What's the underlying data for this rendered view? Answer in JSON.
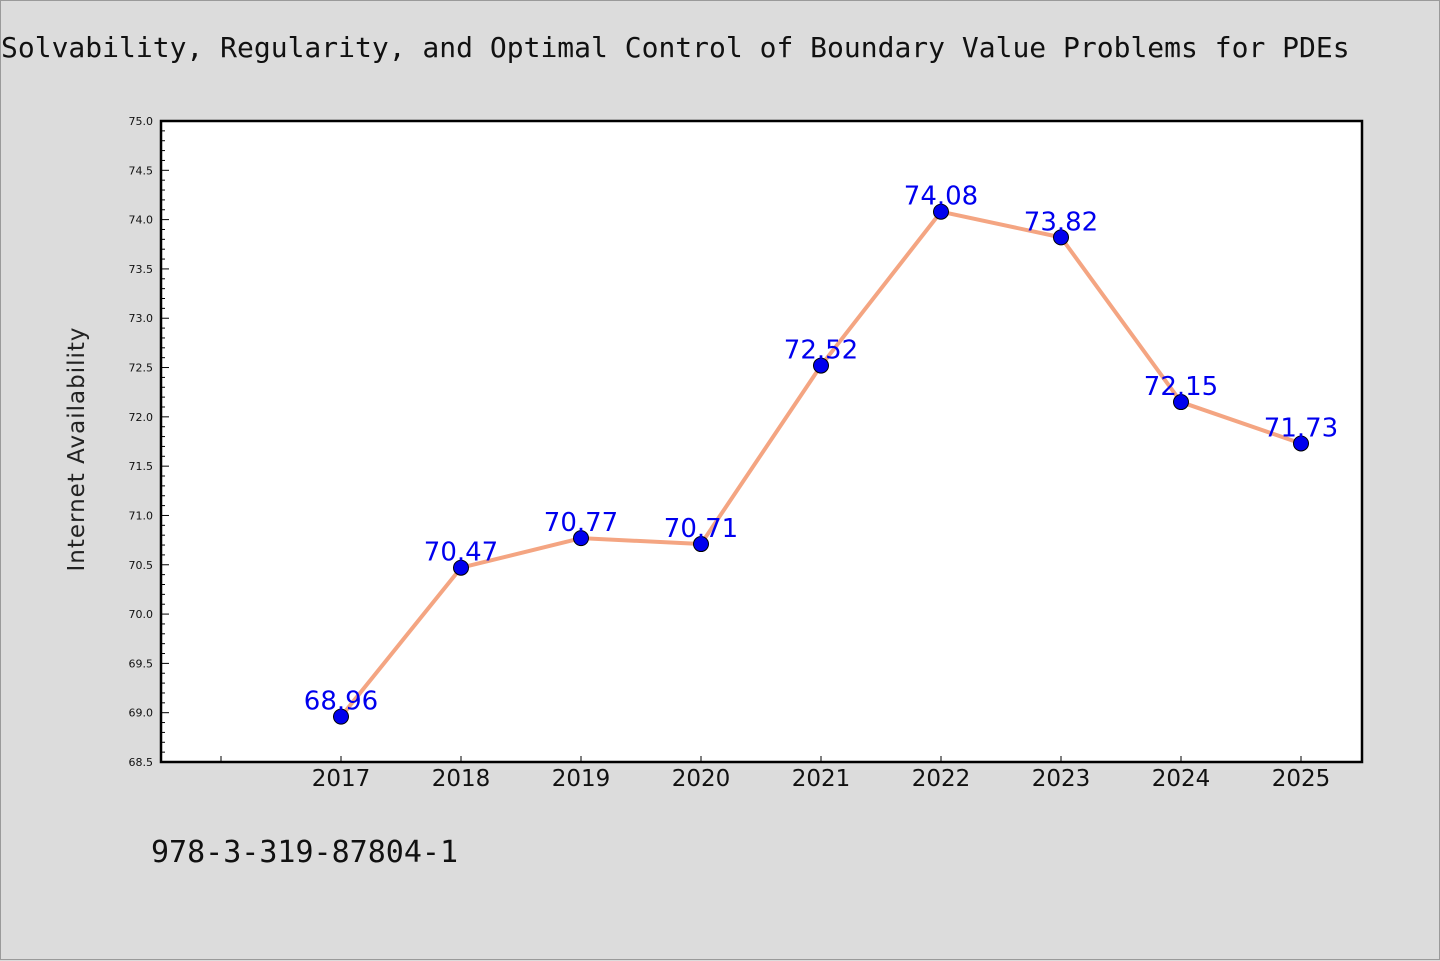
{
  "chart_data": {
    "type": "line",
    "title": "Solvability, Regularity, and Optimal Control of Boundary Value Problems for PDEs",
    "xlabel": "",
    "ylabel": "Internet Availability",
    "x": [
      "2017",
      "2018",
      "2019",
      "2020",
      "2021",
      "2022",
      "2023",
      "2024",
      "2025"
    ],
    "series": [
      {
        "values": [
          68.96,
          70.47,
          70.77,
          70.71,
          72.52,
          74.08,
          73.82,
          72.15,
          71.73
        ],
        "labels": [
          "68.96",
          "70.47",
          "70.77",
          "70.71",
          "72.52",
          "74.08",
          "73.82",
          "72.15",
          "71.73"
        ],
        "line_color": "#f4a582",
        "marker_color": "#0000ee"
      }
    ],
    "ylim": [
      68.5,
      75.0
    ],
    "yticks": [
      "68.5",
      "69.0",
      "69.5",
      "70.0",
      "70.5",
      "71.0",
      "71.5",
      "72.0",
      "72.5",
      "73.0",
      "73.5",
      "74.0",
      "74.5",
      "75.0"
    ],
    "grid": false,
    "legend": "none"
  },
  "footer": {
    "identifier": "978-3-319-87804-1"
  }
}
